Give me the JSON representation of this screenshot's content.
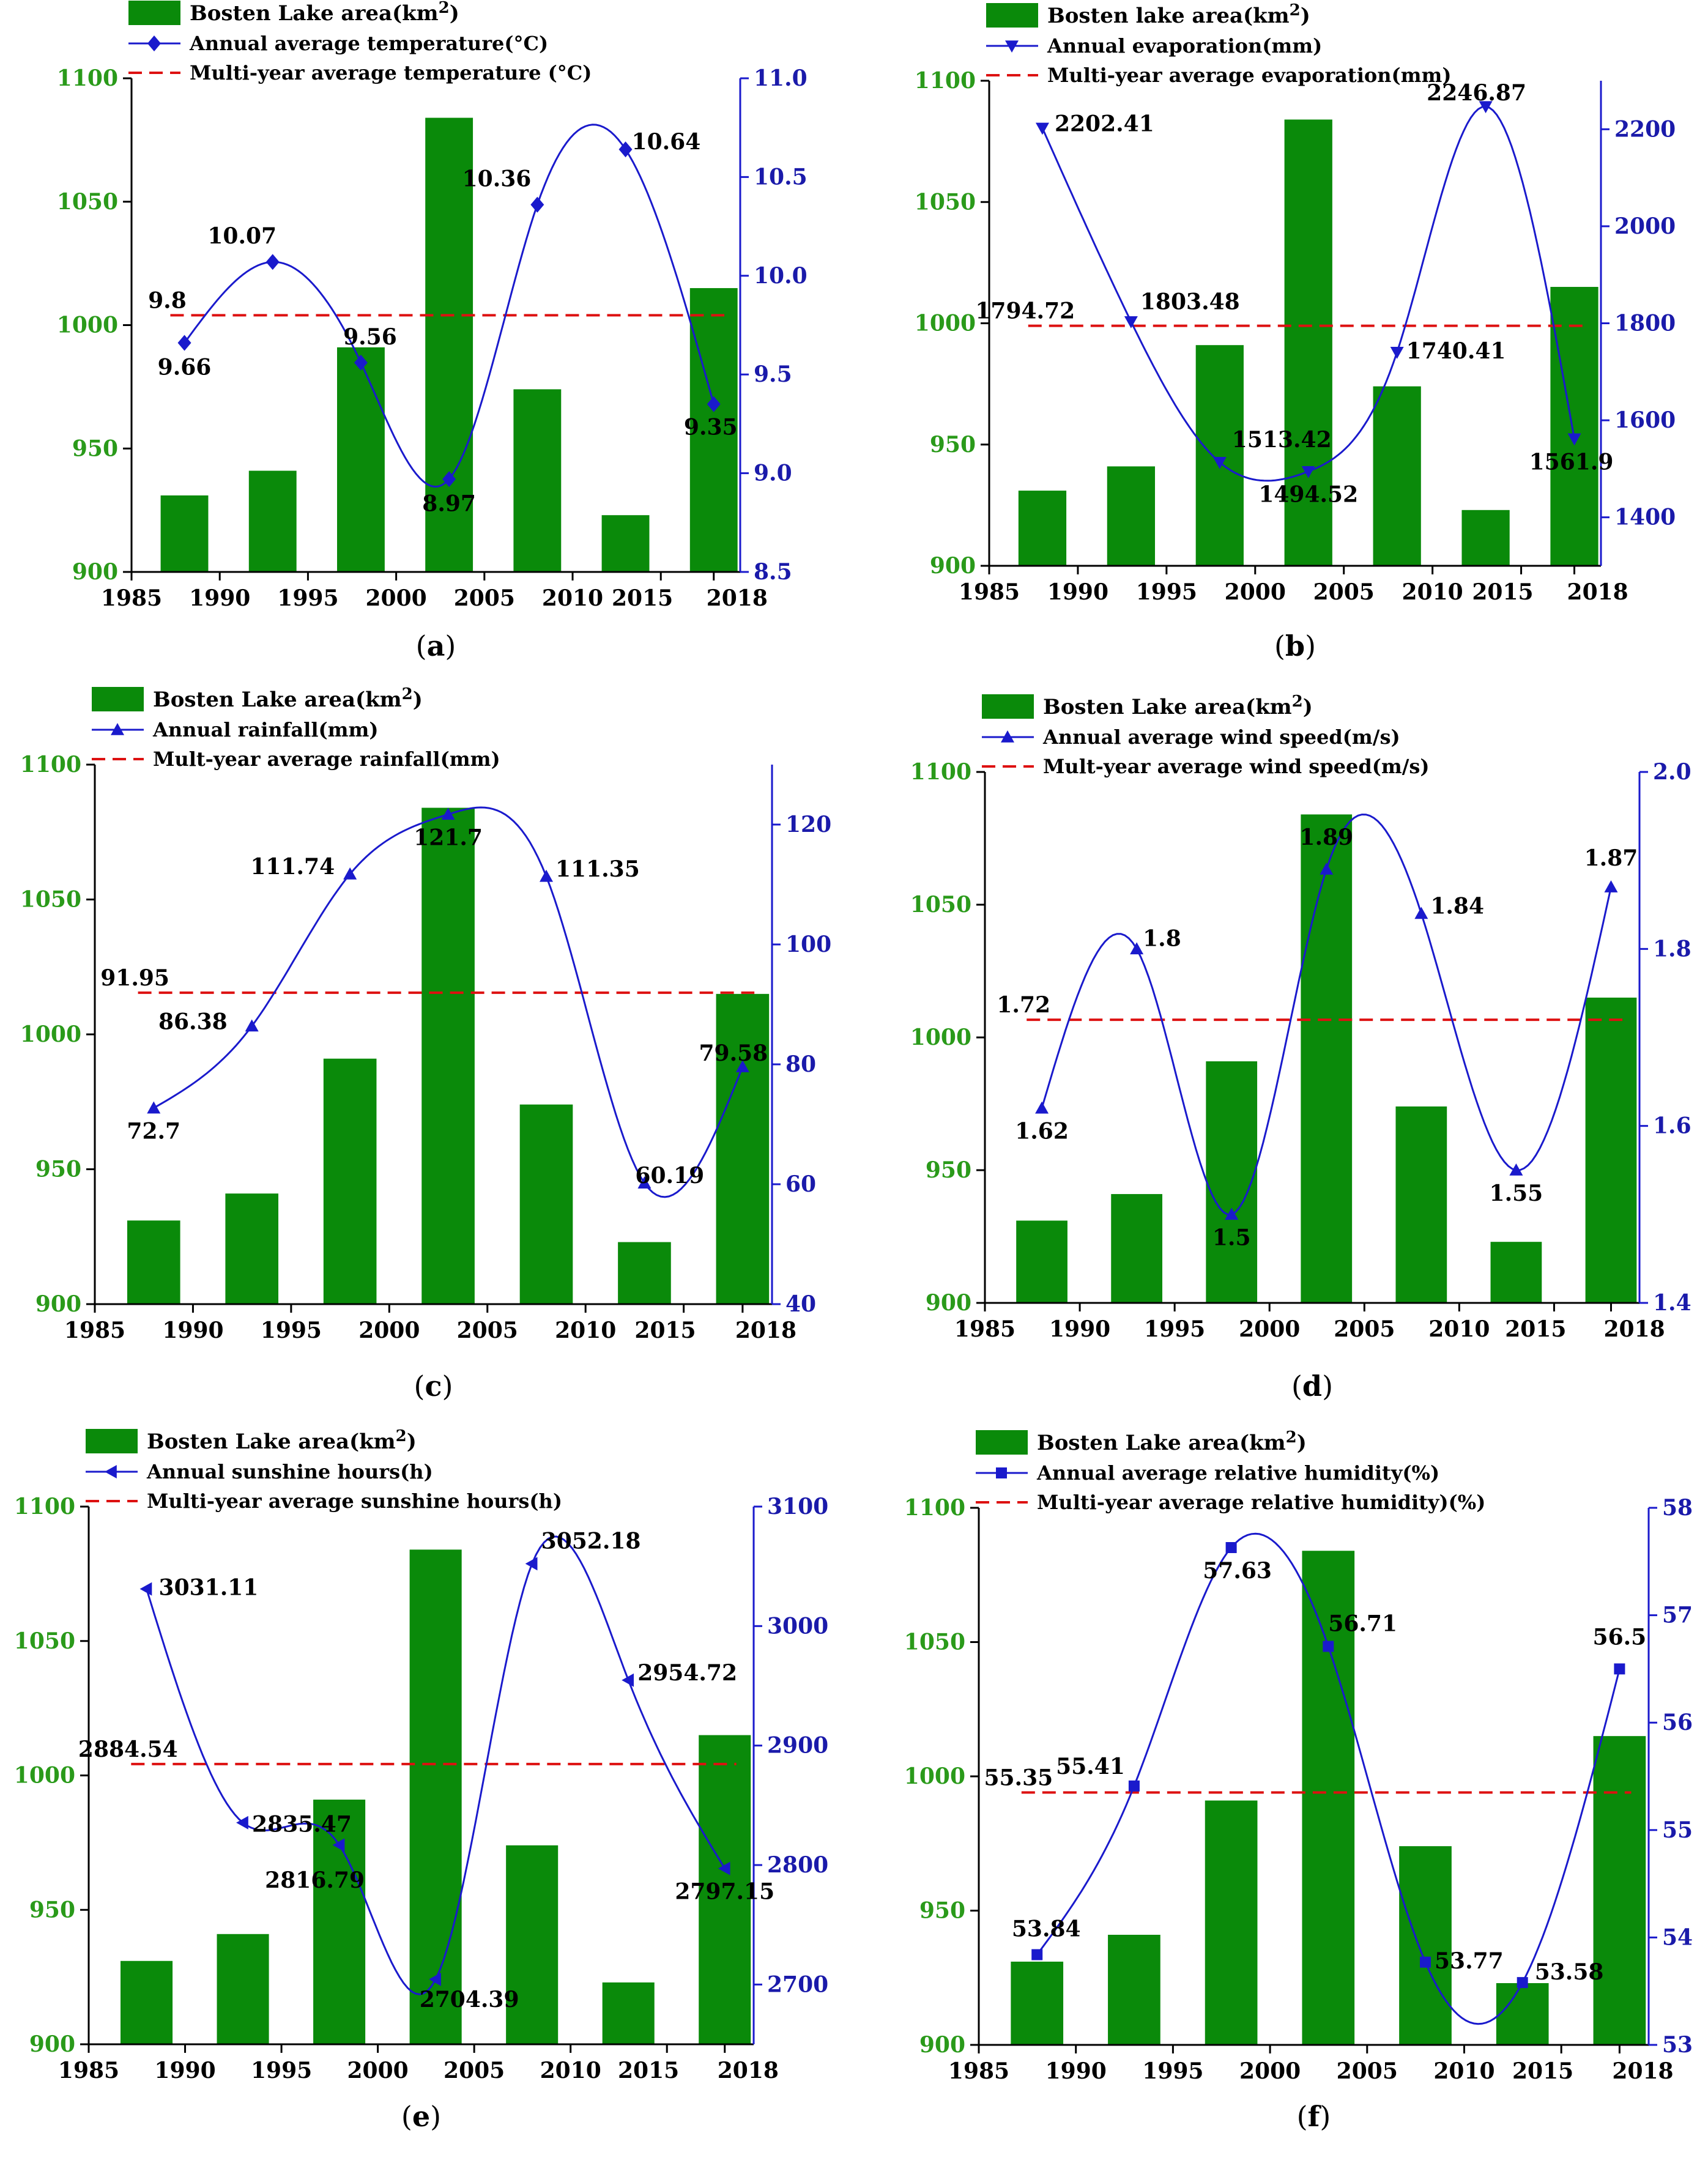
{
  "panel_labels": [
    "(a)",
    "(b)",
    "(c)",
    "(d)",
    "(e)",
    "(f)"
  ],
  "colors": {
    "bar": "#0a8a0a",
    "line": "#1a1acc",
    "avg_line": "#dd1111",
    "left_axis_text": "#2a9a1a",
    "right_axis_text": "#1a1aaa",
    "text": "#000000"
  },
  "chart_data": [
    {
      "type": "bar",
      "panel": "(a)",
      "title": "",
      "categories": [
        1988,
        1993,
        1998,
        2003,
        2008,
        2013,
        2018
      ],
      "series": [
        {
          "name": "Bosten Lake area(km2)",
          "axis": "left",
          "type": "bar",
          "values": [
            931,
            941,
            991,
            1084,
            974,
            923,
            1015
          ]
        },
        {
          "name": "Annual average temperature(°C)",
          "axis": "right",
          "type": "line",
          "marker": "diamond",
          "values": [
            9.66,
            10.07,
            9.56,
            8.97,
            10.36,
            10.64,
            9.35
          ],
          "labels": [
            "9.66",
            "10.07",
            "9.56",
            "8.97",
            "10.36",
            "10.64",
            "9.35"
          ]
        },
        {
          "name": "Multi-year average temperature (°C)",
          "axis": "right",
          "type": "dashed",
          "value": 9.8,
          "label": "9.8"
        }
      ],
      "legend_entries": [
        "Bosten Lake area(km",
        "Annual average temperature(°C)",
        "Multi-year average temperature (°C)"
      ],
      "legend_sup": "2",
      "legend_close": ")",
      "x_ticks": [
        "1985",
        "1990",
        "1995",
        "2000",
        "2005",
        "2010",
        "2015",
        "2018"
      ],
      "xlim": [
        1985,
        2019.5
      ],
      "ylim_left": [
        900,
        1100
      ],
      "yticks_left": [
        "900",
        "950",
        "1000",
        "1050",
        "1100"
      ],
      "ylim_right": [
        8.5,
        11.0
      ],
      "yticks_right": [
        "8.5",
        "9.0",
        "9.5",
        "10.0",
        "10.5",
        "11.0"
      ]
    },
    {
      "type": "bar",
      "panel": "(b)",
      "title": "",
      "categories": [
        1988,
        1993,
        1998,
        2003,
        2008,
        2013,
        2018
      ],
      "series": [
        {
          "name": "Bosten lake area(km2)",
          "axis": "left",
          "type": "bar",
          "values": [
            931,
            941,
            991,
            1084,
            974,
            923,
            1015
          ]
        },
        {
          "name": "Annual evaporation(mm)",
          "axis": "right",
          "type": "line",
          "marker": "triangle-down",
          "values": [
            2202.41,
            1803.48,
            1513.42,
            1494.52,
            1740.41,
            2246.87,
            1561.9
          ],
          "labels": [
            "2202.41",
            "1803.48",
            "1513.42",
            "1494.52",
            "1740.41",
            "2246.87",
            "1561.9"
          ]
        },
        {
          "name": "Multi-year average evaporation(mm)",
          "axis": "right",
          "type": "dashed",
          "value": 1794.72,
          "label": "1794.72"
        }
      ],
      "legend_entries": [
        "Bosten lake area(km",
        "Annual evaporation(mm)",
        "Multi-year average evaporation(mm)"
      ],
      "legend_sup": "2",
      "legend_close": ")",
      "x_ticks": [
        "1985",
        "1990",
        "1995",
        "2000",
        "2005",
        "2010",
        "2015",
        "2018"
      ],
      "xlim": [
        1985,
        2019.5
      ],
      "ylim_left": [
        900,
        1100
      ],
      "yticks_left": [
        "900",
        "950",
        "1000",
        "1050",
        "1100"
      ],
      "ylim_right": [
        1300,
        2300
      ],
      "yticks_right": [
        "1400",
        "1600",
        "1800",
        "2000",
        "2200"
      ]
    },
    {
      "type": "bar",
      "panel": "(c)",
      "title": "",
      "categories": [
        1988,
        1993,
        1998,
        2003,
        2008,
        2013,
        2018
      ],
      "series": [
        {
          "name": "Bosten Lake area(km2)",
          "axis": "left",
          "type": "bar",
          "values": [
            931,
            941,
            991,
            1084,
            974,
            923,
            1015
          ]
        },
        {
          "name": "Annual rainfall(mm)",
          "axis": "right",
          "type": "line",
          "marker": "triangle-up",
          "values": [
            72.7,
            86.38,
            111.74,
            121.7,
            111.35,
            60.19,
            79.58
          ],
          "labels": [
            "72.7",
            "86.38",
            "111.74",
            "121.7",
            "111.35",
            "60.19",
            "79.58"
          ]
        },
        {
          "name": "Mult-year average rainfall(mm)",
          "axis": "right",
          "type": "dashed",
          "value": 91.95,
          "label": "91.95"
        }
      ],
      "legend_entries": [
        "Bosten Lake area(km",
        "Annual rainfall(mm)",
        "Mult-year average rainfall(mm)"
      ],
      "legend_sup": "2",
      "legend_close": ")",
      "x_ticks": [
        "1985",
        "1990",
        "1995",
        "2000",
        "2005",
        "2010",
        "2015",
        "2018"
      ],
      "xlim": [
        1985,
        2019.5
      ],
      "ylim_left": [
        900,
        1100
      ],
      "yticks_left": [
        "900",
        "950",
        "1000",
        "1050",
        "1100"
      ],
      "ylim_right": [
        40,
        130
      ],
      "yticks_right": [
        "40",
        "60",
        "80",
        "100",
        "120"
      ]
    },
    {
      "type": "bar",
      "panel": "(d)",
      "title": "",
      "categories": [
        1988,
        1993,
        1998,
        2003,
        2008,
        2013,
        2018
      ],
      "series": [
        {
          "name": "Bosten Lake area(km2)",
          "axis": "left",
          "type": "bar",
          "values": [
            931,
            941,
            991,
            1084,
            974,
            923,
            1015
          ]
        },
        {
          "name": "Annual average wind speed(m/s)",
          "axis": "right",
          "type": "line",
          "marker": "triangle-up",
          "values": [
            1.62,
            1.8,
            1.5,
            1.89,
            1.84,
            1.55,
            1.87
          ],
          "labels": [
            "1.62",
            "1.8",
            "1.5",
            "1.89",
            "1.84",
            "1.55",
            "1.87"
          ]
        },
        {
          "name": "Mult-year average wind speed(m/s)",
          "axis": "right",
          "type": "dashed",
          "value": 1.72,
          "label": "1.72"
        }
      ],
      "legend_entries": [
        "Bosten Lake area(km",
        "Annual average wind speed(m/s)",
        "Mult-year average wind speed(m/s)"
      ],
      "legend_sup": "2",
      "legend_close": ")",
      "x_ticks": [
        "1985",
        "1990",
        "1995",
        "2000",
        "2005",
        "2010",
        "2015",
        "2018"
      ],
      "xlim": [
        1985,
        2019.5
      ],
      "ylim_left": [
        900,
        1100
      ],
      "yticks_left": [
        "900",
        "950",
        "1000",
        "1050",
        "1100"
      ],
      "ylim_right": [
        1.4,
        2.0
      ],
      "yticks_right": [
        "1.4",
        "1.6",
        "1.8",
        "2.0"
      ]
    },
    {
      "type": "bar",
      "panel": "(e)",
      "title": "",
      "categories": [
        1988,
        1993,
        1998,
        2003,
        2008,
        2013,
        2018
      ],
      "series": [
        {
          "name": "Bosten Lake area(km2)",
          "axis": "left",
          "type": "bar",
          "values": [
            931,
            941,
            991,
            1084,
            974,
            923,
            1015
          ]
        },
        {
          "name": "Annual sunshine hours(h)",
          "axis": "right",
          "type": "line",
          "marker": "triangle-left",
          "values": [
            3031.11,
            2835.47,
            2816.79,
            2704.39,
            3052.18,
            2954.72,
            2797.15
          ],
          "labels": [
            "3031.11",
            "2835.47",
            "2816.79",
            "2704.39",
            "3052.18",
            "2954.72",
            "2797.15"
          ]
        },
        {
          "name": "Multi-year average sunshine hours(h)",
          "axis": "right",
          "type": "dashed",
          "value": 2884.54,
          "label": "2884.54"
        }
      ],
      "legend_entries": [
        "Bosten Lake area(km",
        "Annual sunshine hours(h)",
        "Multi-year average sunshine hours(h)"
      ],
      "legend_sup": "2",
      "legend_close": ")",
      "x_ticks": [
        "1985",
        "1990",
        "1995",
        "2000",
        "2005",
        "2010",
        "2015",
        "2018"
      ],
      "xlim": [
        1985,
        2019.5
      ],
      "ylim_left": [
        900,
        1100
      ],
      "yticks_left": [
        "900",
        "950",
        "1000",
        "1050",
        "1100"
      ],
      "ylim_right": [
        2650,
        3100
      ],
      "yticks_right": [
        "2700",
        "2800",
        "2900",
        "3000",
        "3100"
      ]
    },
    {
      "type": "bar",
      "panel": "(f)",
      "title": "",
      "categories": [
        1988,
        1993,
        1998,
        2003,
        2008,
        2013,
        2018
      ],
      "series": [
        {
          "name": "Bosten Lake area(km2)",
          "axis": "left",
          "type": "bar",
          "values": [
            931,
            941,
            991,
            1084,
            974,
            923,
            1015
          ]
        },
        {
          "name": "Annual average relative humidity(%)",
          "axis": "right",
          "type": "line",
          "marker": "square",
          "values": [
            53.84,
            55.41,
            57.63,
            56.71,
            53.77,
            53.58,
            56.5
          ],
          "labels": [
            "53.84",
            "55.41",
            "57.63",
            "56.71",
            "53.77",
            "53.58",
            "56.5"
          ]
        },
        {
          "name": "Multi-year average relative humidity)(%)",
          "axis": "right",
          "type": "dashed",
          "value": 55.35,
          "label": "55.35"
        }
      ],
      "legend_entries": [
        "Bosten Lake area(km",
        "Annual average relative humidity(%)",
        "Multi-year average relative humidity)(%)"
      ],
      "legend_sup": "2",
      "legend_close": ")",
      "x_ticks": [
        "1985",
        "1990",
        "1995",
        "2000",
        "2005",
        "2010",
        "2015",
        "2018"
      ],
      "xlim": [
        1985,
        2019.5
      ],
      "ylim_left": [
        900,
        1100
      ],
      "yticks_left": [
        "900",
        "950",
        "1000",
        "1050",
        "1100"
      ],
      "ylim_right": [
        53,
        58
      ],
      "yticks_right": [
        "53",
        "54",
        "55",
        "56",
        "57",
        "58"
      ]
    }
  ]
}
